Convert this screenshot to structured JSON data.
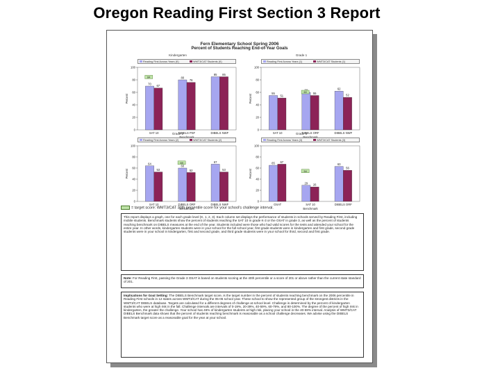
{
  "page": {
    "title": "Oregon Reading First Section 3 Report"
  },
  "doc": {
    "heading": "Fern Elementary School Spring 2006",
    "subheading": "Percent of Students Reaching End-of-Year Goals",
    "target_legend": "= target score: WMT3/CAT 30th percentile score for your school's challenge interval.",
    "description": "This report displays a graph, one for each grade level (K, 1, 2, 3). Each column set displays the performance of students in schools served by Reading First, including mobile students. Benchmark students show the percent of students reaching the SAT 10 in grade K-3 or the OSAT in grade 3, as well as the percent of students reaching benchmark on DIBELS measures at the end of the year. Students included were those who had valid scores for the tests and attended your school for the entire year. In other words, kindergarten students were in your school for the full school year, first grade students were in kindergarten and first grade, second grade students were in your school in kindergarten, first and second grade, and third grade students were in your school for third, second and first grade.",
    "note_label": "Note:",
    "note": "For Reading First, passing the Grade 3 OSAT is based on students scoring at the 40th percentile or a score of 201 or above rather than the current state standard of 201.",
    "implications_label": "Implications for Goal Setting:",
    "implications": "The DIBELS Benchmark target score, is the target number in the percent of students reaching benchmark on the 2006 percentile in Reading First schools in 12 states across WMT3/CAT during the 05-06 school year. These school to show the represented group of the strongest districts in the WMT3/CAT DIBELS database. Targets are calculated for a different degrees of challenge at school level. Challenge is determined by the percent of kindergarten students who were at high risk in the fall. Challenge intervals are intervals of 0-19%, 20-39%, 40-59%, 60-79%, and 80-100%. The degree of the percent of high risk in kindergarten, the greater the challenge. Your school has 46% of kindergarten students at high risk, placing your school in the 40-59% interval. Analysis of WMT3/CAT DIBELS Benchmark data shows that the percent of students reaching benchmark is reasonable as a school challenge decreases. We advise using the DIBELS Benchmark target score as a reasonable goal for the year at your school."
  },
  "legend_swatches": {
    "prior": "#a6a6f0",
    "current": "#8c2357"
  },
  "colors": {
    "target_fill": "#bfe3a8",
    "target_stroke": "#4a7a2a"
  },
  "panels": [
    {
      "title": "Kindergarten",
      "legend": [
        "Reading First Across Years (K)",
        "WMT3/CAT Students (K)"
      ],
      "ylabel": "Percent",
      "xlabel": "Benchmark",
      "chart_data": {
        "type": "bar",
        "categories": [
          "SAT 10",
          "DIBELS PSF",
          "DIBELS NWF"
        ],
        "series": [
          {
            "name": "Reading First Across Years (K)",
            "values": [
              70,
              80,
              85
            ]
          },
          {
            "name": "WMT3/CAT Students (K)",
            "values": [
              67,
              76,
              85
            ]
          }
        ],
        "targets": [
          84,
          null,
          null
        ],
        "yticks": [
          0,
          20,
          40,
          60,
          80,
          100
        ],
        "ylim": [
          0,
          100
        ]
      }
    },
    {
      "title": "Grade 1",
      "legend": [
        "Reading First Across Years (1)",
        "WMT3/CAT Students (1)"
      ],
      "ylabel": "Percent",
      "xlabel": "Benchmark",
      "chart_data": {
        "type": "bar",
        "categories": [
          "SAT 10",
          "DIBELS ORF",
          "DIBELS NWF"
        ],
        "series": [
          {
            "name": "Reading First Across Years (1)",
            "values": [
              55,
              60,
              62
            ]
          },
          {
            "name": "WMT3/CAT Students (1)",
            "values": [
              51,
              55,
              52
            ]
          }
        ],
        "targets": [
          null,
          60,
          null
        ],
        "yticks": [
          0,
          20,
          40,
          60,
          80,
          100
        ],
        "ylim": [
          0,
          100
        ]
      }
    },
    {
      "title": "Grade 2",
      "legend": [
        "Reading First Across Years (2)",
        "WMT3/CAT Students (2)"
      ],
      "ylabel": "Percent",
      "xlabel": "Benchmark",
      "chart_data": {
        "type": "bar",
        "categories": [
          "SAT 10",
          "DIBELS ORF",
          "DIBELS NWF"
        ],
        "series": [
          {
            "name": "Reading First Across Years (2)",
            "values": [
              64,
              60,
              67
            ]
          },
          {
            "name": "WMT3/CAT Students (2)",
            "values": [
              53,
              52,
              53
            ]
          }
        ],
        "targets": [
          null,
          69,
          null
        ],
        "yticks": [
          0,
          20,
          40,
          60,
          80,
          100
        ],
        "ylim": [
          0,
          100
        ]
      }
    },
    {
      "title": "Grade 3",
      "legend": [
        "Reading First Across Years (3)",
        "WMT3/CAT Students (3)"
      ],
      "ylabel": "Percent",
      "xlabel": "Benchmark",
      "chart_data": {
        "type": "bar",
        "categories": [
          "OSAT",
          "SAT 10",
          "DIBELS ORF"
        ],
        "series": [
          {
            "name": "Reading First Across Years (3)",
            "values": [
              65,
              29,
              63
            ]
          },
          {
            "name": "WMT3/CAT Students (3)",
            "values": [
              67,
              26,
              56
            ]
          }
        ],
        "targets": [
          null,
          54,
          null
        ],
        "yticks": [
          0,
          20,
          40,
          60,
          80,
          100
        ],
        "ylim": [
          0,
          100
        ]
      }
    }
  ]
}
